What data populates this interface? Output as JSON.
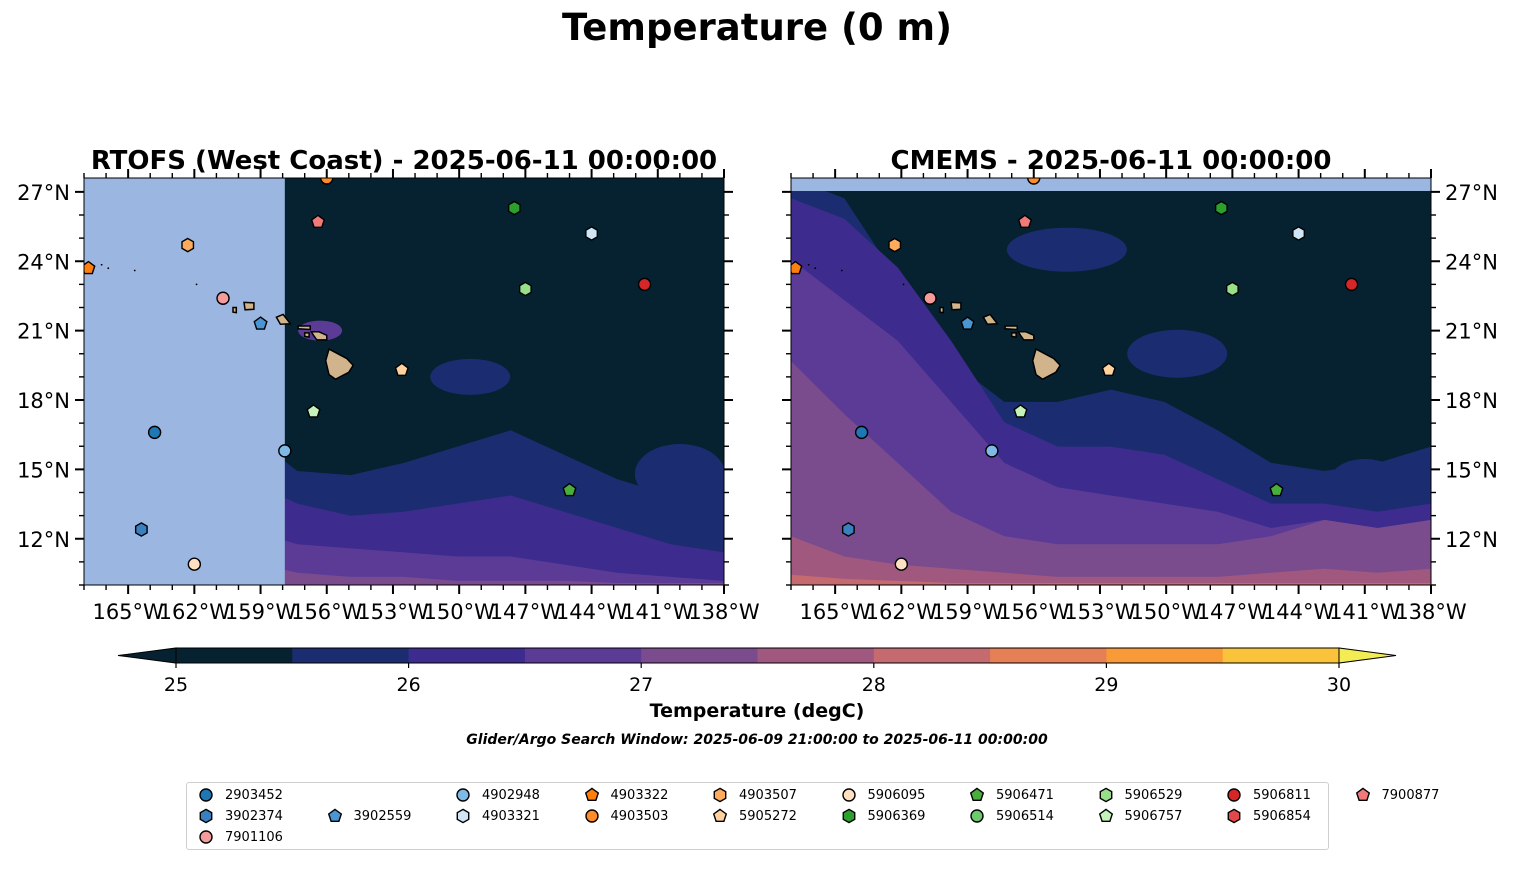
{
  "title": "Temperature (0 m)",
  "colors": {
    "land": "#d2b48c",
    "nodata": "#9ab6e1",
    "levels": [
      "#062231",
      "#1b2d70",
      "#3d2b8e",
      "#5c3b97",
      "#7a4c8e",
      "#a1587f",
      "#c56a6f",
      "#e57f55",
      "#f79a37",
      "#fbc33b",
      "#f3ec55"
    ],
    "under": "#062231",
    "over": "#f3ec55"
  },
  "colorbar": {
    "ticks": [
      25,
      26,
      27,
      28,
      29,
      30
    ],
    "label": "Temperature (degC)",
    "extend": "both"
  },
  "search_window": "Glider/Argo Search Window: 2025-06-09 21:00:00 to 2025-06-11 00:00:00",
  "chart_data": [
    {
      "type": "map-contour",
      "title": "RTOFS (West Coast) - 2025-06-11 00:00:00",
      "xlim": [
        -167,
        -138
      ],
      "ylim": [
        10,
        27.6
      ],
      "xticks": [
        -165,
        -162,
        -159,
        -156,
        -153,
        -150,
        -147,
        -144,
        -141,
        -138
      ],
      "yticks": [
        12,
        15,
        18,
        21,
        24,
        27
      ],
      "xticklabels": [
        "165°W",
        "162°W",
        "159°W",
        "156°W",
        "153°W",
        "150°W",
        "147°W",
        "144°W",
        "141°W",
        "138°W"
      ],
      "yticklabels": [
        "12°N",
        "15°N",
        "18°N",
        "21°N",
        "24°N",
        "27°N"
      ],
      "yaxis_side": "left",
      "model_west_edge_lon": -157.9,
      "top_nodata_band": false
    },
    {
      "type": "map-contour",
      "title": "CMEMS - 2025-06-11 00:00:00",
      "xlim": [
        -167,
        -138
      ],
      "ylim": [
        10,
        27.6
      ],
      "xticks": [
        -165,
        -162,
        -159,
        -156,
        -153,
        -150,
        -147,
        -144,
        -141,
        -138
      ],
      "yticks": [
        12,
        15,
        18,
        21,
        24,
        27
      ],
      "xticklabels": [
        "165°W",
        "162°W",
        "159°W",
        "156°W",
        "153°W",
        "150°W",
        "147°W",
        "144°W",
        "141°W",
        "138°W"
      ],
      "yticklabels": [
        "12°N",
        "15°N",
        "18°N",
        "21°N",
        "24°N",
        "27°N"
      ],
      "yaxis_side": "right",
      "model_west_edge_lon": null,
      "top_nodata_band": true
    }
  ],
  "floats": [
    {
      "id": "2903452",
      "marker": "circle",
      "color": "#1f77b4",
      "lon": -163.8,
      "lat": 16.6
    },
    {
      "id": "3902374",
      "marker": "hexagon",
      "color": "#3a7fc0",
      "lon": -164.4,
      "lat": 12.4
    },
    {
      "id": "3902559",
      "marker": "pentagon",
      "color": "#4b95d2",
      "lon": -159.0,
      "lat": 21.3
    },
    {
      "id": "4902948",
      "marker": "circle",
      "color": "#7fb9e5",
      "lon": -157.9,
      "lat": 15.8
    },
    {
      "id": "4903321",
      "marker": "hexagon",
      "color": "#cfe6f7",
      "lon": -144.0,
      "lat": 25.2
    },
    {
      "id": "4903322",
      "marker": "pentagon",
      "color": "#ff7f0e",
      "lon": -166.8,
      "lat": 23.7
    },
    {
      "id": "4903503",
      "marker": "circle",
      "color": "#ff8c28",
      "lon": -156.0,
      "lat": 27.6
    },
    {
      "id": "4903507",
      "marker": "hexagon",
      "color": "#ffab5e",
      "lon": -162.3,
      "lat": 24.7
    },
    {
      "id": "5905272",
      "marker": "pentagon",
      "color": "#ffd19f",
      "lon": -152.6,
      "lat": 19.3
    },
    {
      "id": "5906095",
      "marker": "circle",
      "color": "#ffe0c2",
      "lon": -162.0,
      "lat": 10.9
    },
    {
      "id": "5906369",
      "marker": "hexagon",
      "color": "#2ca02c",
      "lon": -147.5,
      "lat": 26.3
    },
    {
      "id": "5906471",
      "marker": "pentagon",
      "color": "#4aae3c",
      "lon": -145.0,
      "lat": 14.1
    },
    {
      "id": "5906514",
      "marker": "circle",
      "color": "#6cc96c",
      "lon": null,
      "lat": null
    },
    {
      "id": "5906529",
      "marker": "hexagon",
      "color": "#98df8a",
      "lon": -147.0,
      "lat": 22.8
    },
    {
      "id": "5906757",
      "marker": "pentagon",
      "color": "#c4f2b8",
      "lon": -156.6,
      "lat": 17.5
    },
    {
      "id": "5906811",
      "marker": "circle",
      "color": "#d62728",
      "lon": -141.6,
      "lat": 23.0
    },
    {
      "id": "5906854",
      "marker": "hexagon",
      "color": "#e2474b",
      "lon": null,
      "lat": null
    },
    {
      "id": "7900877",
      "marker": "pentagon",
      "color": "#f07a7a",
      "lon": -156.4,
      "lat": 25.7
    },
    {
      "id": "7901106",
      "marker": "circle",
      "color": "#f49c9c",
      "lon": -160.7,
      "lat": 22.4
    }
  ]
}
